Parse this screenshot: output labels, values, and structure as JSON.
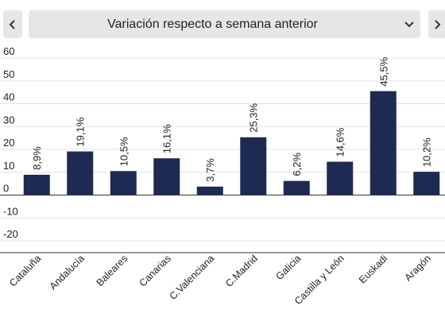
{
  "header": {
    "selector_label": "Variación respecto a semana anterior",
    "prev_icon": "chevron-left-icon",
    "next_icon": "chevron-right-icon",
    "dropdown_icon": "chevron-down-icon"
  },
  "colors": {
    "bar": "#1f2a52",
    "grid": "#e3e3e3",
    "axis": "#333333",
    "text": "#222222",
    "button_bg": "#e6e6e6"
  },
  "chart_data": {
    "type": "bar",
    "categories": [
      "Cataluña",
      "Andalucía",
      "Baleares",
      "Canarias",
      "C.Valenciana",
      "C.Madrid",
      "Galicia",
      "Castilla y León",
      "Euskadi",
      "Aragón"
    ],
    "values": [
      8.9,
      19.1,
      10.5,
      16.1,
      3.7,
      25.3,
      6.2,
      14.6,
      45.5,
      10.2
    ],
    "data_labels": [
      "8,9%",
      "19,1%",
      "10,5%",
      "16,1%",
      "3,7%",
      "25,3%",
      "6,2%",
      "14,6%",
      "45,5%",
      "10,2%"
    ],
    "yticks": [
      60,
      50,
      40,
      30,
      20,
      10,
      0,
      -10,
      -20
    ],
    "ylim": [
      -20,
      60
    ],
    "title": "",
    "xlabel": "",
    "ylabel": "",
    "grid": true,
    "legend": "none"
  }
}
